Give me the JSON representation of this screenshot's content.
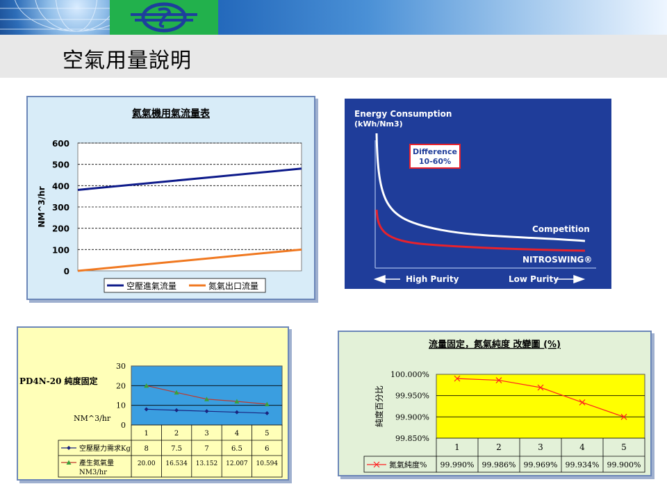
{
  "page": {
    "title": "空氣用量說明"
  },
  "chart_data": [
    {
      "type": "line",
      "title": "氦氣機用氣流量表",
      "ylabel": "NM^3/hr",
      "ylim": [
        0,
        600
      ],
      "yticks": [
        "600",
        "500",
        "400",
        "300",
        "200",
        "100",
        "0"
      ],
      "x": [
        0,
        1
      ],
      "series": [
        {
          "name": "空壓進氣流量",
          "values": [
            380,
            480
          ],
          "color": "#0d1a8a"
        },
        {
          "name": "氮氣出口流量",
          "values": [
            0,
            100
          ],
          "color": "#f07820"
        }
      ],
      "legend": "bottom",
      "grid": true
    },
    {
      "type": "line",
      "title": "Energy Consumption",
      "subtitle": "(kWh/Nm3)",
      "box_label_1": "Difference",
      "box_label_2": "10-60%",
      "series": [
        {
          "name": "Competition",
          "color": "#ffffff"
        },
        {
          "name": "NITROSWING®",
          "color": "#e8222c"
        }
      ],
      "xlabel_left": "High Purity",
      "xlabel_right": "Low Purity"
    },
    {
      "type": "line",
      "title": "PD4N-20 純度固定",
      "ylabel": "NM^3/hr",
      "ylim": [
        0,
        30
      ],
      "yticks": [
        "30",
        "20",
        "10",
        "0"
      ],
      "categories": [
        "1",
        "2",
        "3",
        "4",
        "5"
      ],
      "series": [
        {
          "name": "空壓壓力需求Kg",
          "values": [
            8,
            7.5,
            7,
            6.5,
            6
          ],
          "labels": [
            "8",
            "7.5",
            "7",
            "6.5",
            "6"
          ],
          "color": "#1a237e"
        },
        {
          "name": "產生氮氣量",
          "name_line2": "NM3/hr",
          "values": [
            20.0,
            16.534,
            13.152,
            12.007,
            10.594
          ],
          "labels": [
            "20.00",
            "16.534",
            "13.152",
            "12.007",
            "10.594"
          ],
          "color": "#c0392b",
          "marker_color": "#3aa13a"
        }
      ],
      "legend": "table",
      "grid": true
    },
    {
      "type": "line",
      "title": "流量固定，氮氣純度 改變圖 (%)",
      "ylabel": "純度百分比",
      "ylim": [
        99.85,
        100.0
      ],
      "yticks": [
        "100.000%",
        "99.950%",
        "99.900%",
        "99.850%"
      ],
      "categories": [
        "1",
        "2",
        "3",
        "4",
        "5"
      ],
      "series": [
        {
          "name": "氮氣純度%",
          "values": [
            99.99,
            99.986,
            99.969,
            99.934,
            99.9
          ],
          "labels": [
            "99.990%",
            "99.986%",
            "99.969%",
            "99.934%",
            "99.900%"
          ],
          "color": "#ff2020"
        }
      ],
      "legend": "table",
      "grid": true
    }
  ]
}
